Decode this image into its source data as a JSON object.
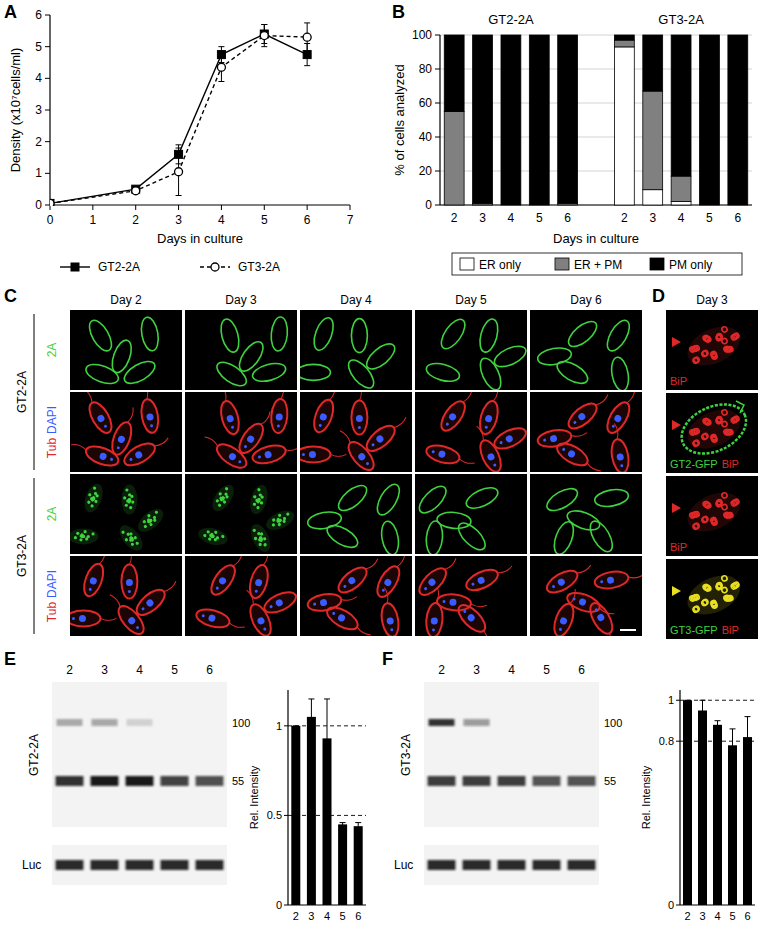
{
  "chart_data": [
    {
      "panel": "A",
      "type": "line",
      "xlabel": "Days in culture",
      "ylabel": "Density (x10⁷cells/ml)",
      "x": [
        0,
        2,
        3,
        4,
        5,
        6
      ],
      "xlim": [
        0,
        7
      ],
      "xticks": [
        0,
        1,
        2,
        3,
        4,
        5,
        6,
        7
      ],
      "ylim": [
        0,
        6
      ],
      "yticks": [
        0,
        1,
        2,
        3,
        4,
        5,
        6
      ],
      "legend": "bottom",
      "series": [
        {
          "name": "GT2-2A",
          "color": "#000000",
          "marker": "square",
          "line_style": "solid",
          "values": [
            0.05,
            0.5,
            1.6,
            4.75,
            5.4,
            4.75
          ],
          "errors": [
            0.03,
            0.08,
            0.3,
            0.25,
            0.3,
            0.35
          ]
        },
        {
          "name": "GT3-2A",
          "color": "#000000",
          "marker": "open-circle",
          "line_style": "dashed",
          "values": [
            0.05,
            0.45,
            1.05,
            4.35,
            5.35,
            5.3
          ],
          "errors": [
            0.03,
            0.08,
            0.75,
            0.45,
            0.35,
            0.45
          ]
        }
      ]
    },
    {
      "panel": "B",
      "type": "bar",
      "stacked": true,
      "grid": true,
      "legend": "bottom",
      "annotations": [
        "GT2-2A",
        "GT3-2A"
      ],
      "xlabel": "Days in culture",
      "ylabel": "% of cells analyzed",
      "categories": [
        "2",
        "3",
        "4",
        "5",
        "6",
        "2",
        "3",
        "4",
        "5",
        "6"
      ],
      "ylim": [
        0,
        100
      ],
      "yticks": [
        0,
        20,
        40,
        60,
        80,
        100
      ],
      "series": [
        {
          "name": "ER only",
          "color": "#ffffff",
          "values": [
            0,
            0,
            0,
            0,
            0,
            93,
            9,
            2,
            0,
            0
          ]
        },
        {
          "name": "ER + PM",
          "color": "#808080",
          "values": [
            55,
            1,
            0,
            0,
            1,
            4,
            58,
            15,
            0,
            0
          ]
        },
        {
          "name": "PM only",
          "color": "#000000",
          "values": [
            45,
            99,
            100,
            100,
            99,
            3,
            33,
            83,
            100,
            100
          ]
        }
      ]
    },
    {
      "type": "bar",
      "ylabel": "Rel. Intensity",
      "categories": [
        "2",
        "3",
        "4",
        "5",
        "6"
      ],
      "values": [
        1,
        1.05,
        0.93,
        0.45,
        0.44
      ],
      "errors": [
        0,
        0.1,
        0.22,
        0.01,
        0.02
      ],
      "color": "#000000",
      "ylim": [
        0,
        1.2
      ],
      "yticks": [
        0,
        0.5,
        1
      ],
      "grid": true
    },
    {
      "type": "bar",
      "ylabel": "Rel. Intensity",
      "categories": [
        "2",
        "3",
        "4",
        "5",
        "6"
      ],
      "values": [
        1,
        0.95,
        0.88,
        0.78,
        0.82
      ],
      "errors": [
        0,
        0.05,
        0.02,
        0.08,
        0.1
      ],
      "color": "#000000",
      "ylim": [
        0,
        1.05
      ],
      "yticks": [
        0,
        0.8,
        1
      ],
      "grid": true
    }
  ],
  "micrographs": {
    "panel": "C",
    "columns": [
      "Day 2",
      "Day 3",
      "Day 4",
      "Day 5",
      "Day 6"
    ],
    "rows": [
      {
        "construct": "GT2-2A",
        "channels": [
          [
            {
              "text": "2A",
              "color": "#3fd23f"
            }
          ],
          [
            {
              "text": "Tub",
              "color": "#e02828"
            },
            {
              "text": "DAPI",
              "color": "#3a5bff"
            }
          ]
        ]
      },
      {
        "construct": "GT3-2A",
        "channels": [
          [
            {
              "text": "2A",
              "color": "#3fd23f"
            }
          ],
          [
            {
              "text": "Tub",
              "color": "#e02828"
            },
            {
              "text": "DAPI",
              "color": "#3a5bff"
            }
          ]
        ]
      }
    ]
  },
  "colocalization": {
    "panel": "D",
    "title": "Day 3",
    "images": [
      {
        "labels": [
          {
            "text": "BiP",
            "color": "#e02828"
          }
        ]
      },
      {
        "labels": [
          {
            "text": "GT2-GFP",
            "color": "#3fd23f"
          },
          {
            "text": "BiP",
            "color": "#e02828"
          }
        ]
      },
      {
        "labels": [
          {
            "text": "BiP",
            "color": "#e02828"
          }
        ]
      },
      {
        "labels": [
          {
            "text": "GT3-GFP",
            "color": "#3fd23f"
          },
          {
            "text": "BiP",
            "color": "#e02828"
          }
        ]
      }
    ]
  },
  "blots": [
    {
      "panel": "E",
      "construct": "GT2-2A",
      "lanes": [
        "2",
        "3",
        "4",
        "5",
        "6"
      ],
      "markers": [
        100,
        55
      ],
      "loading_control": "Luc"
    },
    {
      "panel": "F",
      "construct": "GT3-2A",
      "lanes": [
        "2",
        "3",
        "4",
        "5",
        "6"
      ],
      "markers": [
        100,
        55
      ],
      "loading_control": "Luc"
    }
  ]
}
